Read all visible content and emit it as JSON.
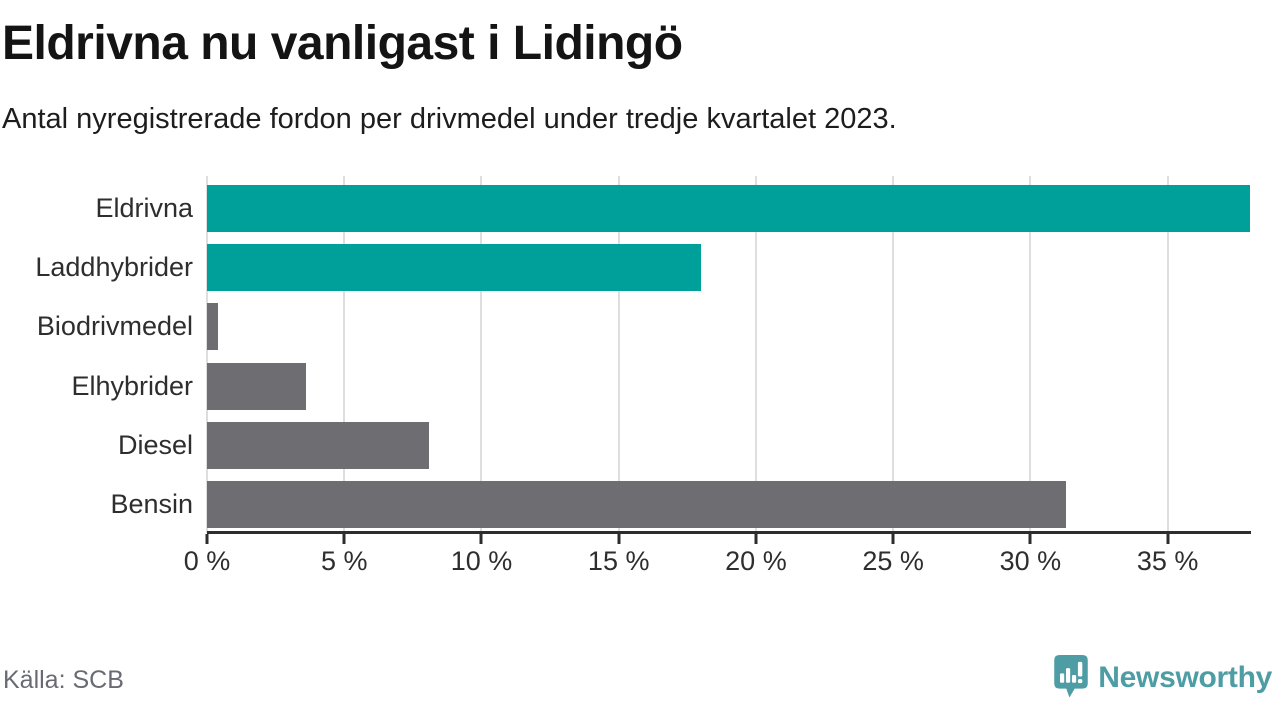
{
  "header": {
    "title": "Eldrivna nu vanligast i Lidingö",
    "subtitle": "Antal nyregistrerade fordon per drivmedel under tredje kvartalet 2023."
  },
  "chart_data": {
    "type": "bar",
    "orientation": "horizontal",
    "title": "Eldrivna nu vanligast i Lidingö",
    "subtitle": "Antal nyregistrerade fordon per drivmedel under tredje kvartalet 2023.",
    "categories": [
      "Eldrivna",
      "Laddhybrider",
      "Biodrivmedel",
      "Elhybrider",
      "Diesel",
      "Bensin"
    ],
    "values": [
      38,
      18,
      0.4,
      3.6,
      8.1,
      31.3
    ],
    "unit": "%",
    "bar_colors": [
      "#00A09A",
      "#00A09A",
      "#6D6D72",
      "#6D6D72",
      "#6D6D72",
      "#6D6D72"
    ],
    "xlim": [
      0,
      38
    ],
    "xticks": [
      0,
      5,
      10,
      15,
      20,
      25,
      30,
      35
    ],
    "xtick_labels": [
      "0 %",
      "5 %",
      "10 %",
      "15 %",
      "20 %",
      "25 %",
      "30 %",
      "35 %"
    ],
    "grid": true,
    "legend": false
  },
  "footer": {
    "source": "Källa: SCB",
    "brand": "Newsworthy"
  },
  "colors": {
    "bar_accent": "#00A09A",
    "bar_neutral": "#6D6D72",
    "grid_line": "#DEDEDE",
    "axis_line": "#2D2D2D",
    "title_text": "#141414",
    "body_text": "#2E2E2E",
    "muted_text": "#6A6A75",
    "brand_teal": "#4E9DA4"
  }
}
